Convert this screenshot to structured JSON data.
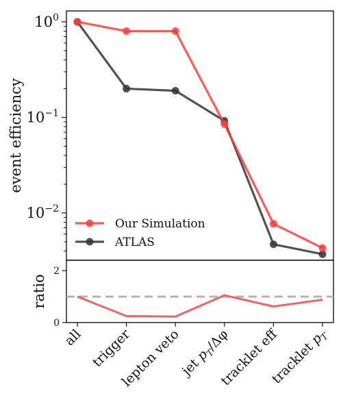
{
  "chart_data": [
    {
      "type": "line",
      "categories": [
        "all",
        "trigger",
        "lepton veto",
        "jet p_T / Δφ",
        "tracklet eff",
        "tracklet p_T"
      ],
      "ylabel": "event efficiency",
      "yscale": "log",
      "ylim": [
        0.0032,
        1.3
      ],
      "ytick_values": [
        1,
        0.1,
        0.01
      ],
      "ytick_labels": [
        {
          "base": "10",
          "exp": "0"
        },
        {
          "base": "10",
          "exp": "−1"
        },
        {
          "base": "10",
          "exp": "−2"
        }
      ],
      "legend_position": "lower-left",
      "series": [
        {
          "name": "Our Simulation",
          "color": "#ff3b3b",
          "values": [
            1.0,
            0.8,
            0.8,
            0.085,
            0.0077,
            0.0043
          ]
        },
        {
          "name": "ATLAS",
          "color": "#333333",
          "values": [
            1.0,
            0.2,
            0.19,
            0.092,
            0.0047,
            0.0037
          ]
        }
      ]
    },
    {
      "type": "line",
      "categories": [
        "all",
        "trigger",
        "lepton veto",
        "jet p_T / Δφ",
        "tracklet eff",
        "tracklet p_T"
      ],
      "ylabel": "ratio",
      "ylim": [
        0,
        2.4
      ],
      "ytick_values": [
        0,
        2
      ],
      "ytick_labels": [
        "0",
        "2"
      ],
      "reference_line": {
        "value": 1,
        "color": "#b3b3b3",
        "style": "dashed"
      },
      "series": [
        {
          "color": "#f05a5a",
          "values": [
            1.0,
            0.25,
            0.23,
            1.05,
            0.62,
            0.88
          ]
        }
      ]
    }
  ],
  "x_tick_labels": [
    {
      "text": "all"
    },
    {
      "text": "trigger"
    },
    {
      "text": "lepton veto"
    },
    {
      "text": "jet ",
      "math": "p",
      "sub": "T",
      "suffix": "/Δφ"
    },
    {
      "text": "tracklet eff"
    },
    {
      "text": "tracklet ",
      "math": "p",
      "sub": "T",
      "suffix": ""
    }
  ]
}
